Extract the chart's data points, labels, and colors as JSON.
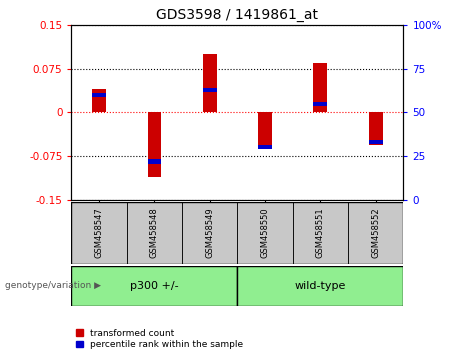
{
  "title": "GDS3598 / 1419861_at",
  "samples": [
    "GSM458547",
    "GSM458548",
    "GSM458549",
    "GSM458550",
    "GSM458551",
    "GSM458552"
  ],
  "red_values": [
    0.04,
    -0.11,
    0.1,
    -0.06,
    0.085,
    -0.055
  ],
  "blue_percentiles": [
    60,
    22,
    63,
    30,
    55,
    33
  ],
  "ylim_left": [
    -0.15,
    0.15
  ],
  "ylim_right": [
    0,
    100
  ],
  "yticks_left": [
    -0.15,
    -0.075,
    0,
    0.075,
    0.15
  ],
  "yticks_right": [
    0,
    25,
    50,
    75,
    100
  ],
  "bar_width": 0.25,
  "red_color": "#CC0000",
  "blue_color": "#0000CC",
  "title_fontsize": 10,
  "tick_fontsize": 7.5,
  "sample_fontsize": 6,
  "group_fontsize": 8,
  "legend_fontsize": 6.5,
  "group_label_text": "genotype/variation ▶",
  "group1_label": "p300 +/-",
  "group2_label": "wild-type",
  "group1_indices": [
    0,
    1,
    2
  ],
  "group2_indices": [
    3,
    4,
    5
  ],
  "green_color": "#90EE90",
  "gray_color": "#C8C8C8"
}
